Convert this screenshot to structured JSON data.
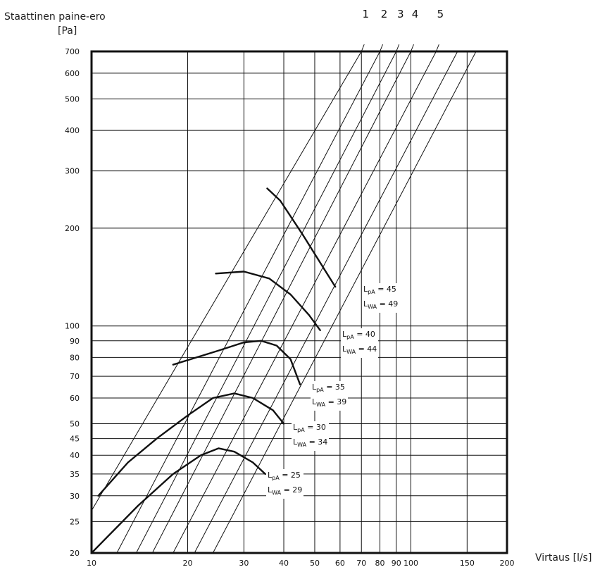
{
  "y_title": "Staattinen paine-ero",
  "y_unit": "[Pa]",
  "x_title": "Virtaus [l/s]",
  "chart_data": {
    "type": "line",
    "xscale": "log",
    "yscale": "log",
    "xlim": [
      10,
      200
    ],
    "ylim": [
      20,
      700
    ],
    "x_ticks": [
      10,
      20,
      30,
      40,
      50,
      60,
      70,
      80,
      90,
      100,
      150,
      200
    ],
    "x_tick_labels": [
      "10",
      "20",
      "30",
      "40",
      "50",
      "60",
      "70",
      "80",
      "90",
      "100",
      "150",
      "200"
    ],
    "y_ticks": [
      20,
      25,
      30,
      35,
      40,
      45,
      50,
      60,
      70,
      80,
      90,
      100,
      200,
      300,
      400,
      500,
      600,
      700
    ],
    "y_tick_labels": [
      "20",
      "25",
      "30",
      "35",
      "40",
      "45",
      "50",
      "60",
      "70",
      "80",
      "90",
      "100",
      "200",
      "300",
      "400",
      "500",
      "600",
      "700"
    ],
    "grid": true,
    "damper_lines": [
      {
        "label": "1",
        "points": [
          [
            10,
            27
          ],
          [
            70,
            700
          ]
        ]
      },
      {
        "label": "2",
        "points": [
          [
            12,
            20
          ],
          [
            80,
            700
          ]
        ]
      },
      {
        "label": "3",
        "points": [
          [
            13.8,
            20
          ],
          [
            90,
            700
          ]
        ]
      },
      {
        "label": "4",
        "points": [
          [
            15.5,
            20
          ],
          [
            100,
            700
          ]
        ]
      },
      {
        "label": "5",
        "points": [
          [
            18,
            20
          ],
          [
            120,
            700
          ]
        ]
      },
      {
        "label": "",
        "points": [
          [
            21,
            20
          ],
          [
            140,
            700
          ]
        ]
      },
      {
        "label": "",
        "points": [
          [
            24,
            20
          ],
          [
            160,
            700
          ]
        ]
      }
    ],
    "sound_curves": [
      {
        "lpa": "45",
        "lwa": "49",
        "points": [
          [
            35.5,
            265
          ],
          [
            39,
            243
          ],
          [
            46,
            190
          ],
          [
            53,
            152
          ],
          [
            58,
            132
          ]
        ]
      },
      {
        "lpa": "40",
        "lwa": "44",
        "points": [
          [
            24.5,
            145
          ],
          [
            30,
            147
          ],
          [
            36,
            140
          ],
          [
            42,
            125
          ],
          [
            48,
            108
          ],
          [
            52,
            97
          ]
        ]
      },
      {
        "lpa": "35",
        "lwa": "39",
        "points": [
          [
            18,
            76
          ],
          [
            25,
            84
          ],
          [
            30,
            89
          ],
          [
            34,
            90
          ],
          [
            38,
            87
          ],
          [
            42,
            79
          ],
          [
            45,
            66
          ]
        ]
      },
      {
        "lpa": "30",
        "lwa": "34",
        "points": [
          [
            10.5,
            30
          ],
          [
            13,
            38
          ],
          [
            16,
            45
          ],
          [
            20,
            53
          ],
          [
            24,
            60
          ],
          [
            28,
            62
          ],
          [
            32,
            60
          ],
          [
            37,
            55
          ],
          [
            40,
            50
          ]
        ]
      },
      {
        "lpa": "25",
        "lwa": "29",
        "points": [
          [
            10,
            20
          ],
          [
            14,
            28
          ],
          [
            18,
            35
          ],
          [
            22,
            40
          ],
          [
            25,
            42
          ],
          [
            28,
            41
          ],
          [
            32,
            38
          ],
          [
            35,
            35
          ]
        ]
      }
    ],
    "labels": [
      {
        "lpa_prefix": "L",
        "lpa_sub": "pA",
        "lpa_value": "45",
        "lwa_prefix": "L",
        "lwa_sub": "WA",
        "lwa_value": "49"
      },
      {
        "lpa_prefix": "L",
        "lpa_sub": "pA",
        "lpa_value": "40",
        "lwa_prefix": "L",
        "lwa_sub": "WA",
        "lwa_value": "44"
      },
      {
        "lpa_prefix": "L",
        "lpa_sub": "pA",
        "lpa_value": "35",
        "lwa_prefix": "L",
        "lwa_sub": "WA",
        "lwa_value": "39"
      },
      {
        "lpa_prefix": "L",
        "lpa_sub": "pA",
        "lpa_value": "30",
        "lwa_prefix": "L",
        "lwa_sub": "WA",
        "lwa_value": "34"
      },
      {
        "lpa_prefix": "L",
        "lpa_sub": "pA",
        "lpa_value": "25",
        "lwa_prefix": "L",
        "lwa_sub": "WA",
        "lwa_value": "29"
      }
    ]
  }
}
